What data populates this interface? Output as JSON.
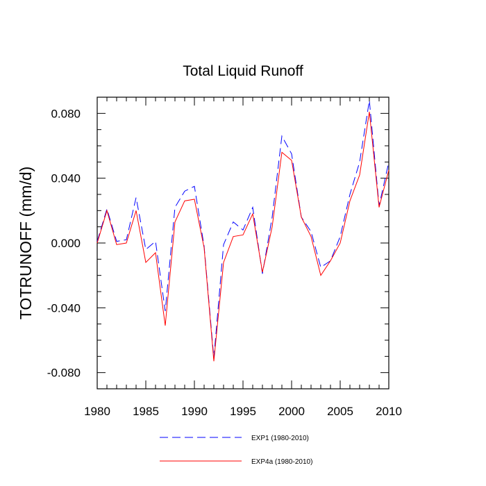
{
  "chart_data": {
    "type": "line",
    "title": "Total Liquid Runoff",
    "xlabel": "",
    "ylabel": "TOTRUNOFF  (mm/d)",
    "xlim": [
      1980,
      2010
    ],
    "ylim": [
      -0.09,
      0.09
    ],
    "x_ticks": [
      1980,
      1985,
      1990,
      1995,
      2000,
      2005,
      2010
    ],
    "y_ticks": [
      -0.08,
      -0.04,
      0.0,
      0.04,
      0.08
    ],
    "x_tick_labels": [
      "1980",
      "1985",
      "1990",
      "1995",
      "2000",
      "2005",
      "2010"
    ],
    "y_tick_labels": [
      "-0.080",
      "-0.040",
      "0.000",
      "0.040",
      "0.080"
    ],
    "grid": false,
    "legend_position": "bottom",
    "x": [
      1980,
      1981,
      1982,
      1983,
      1984,
      1985,
      1986,
      1987,
      1988,
      1989,
      1990,
      1991,
      1992,
      1993,
      1994,
      1995,
      1996,
      1997,
      1998,
      1999,
      2000,
      2001,
      2002,
      2003,
      2004,
      2005,
      2006,
      2007,
      2008,
      2009,
      2010
    ],
    "series": [
      {
        "name": "EXP1 (1980-2010)",
        "color": "#0000ff",
        "dash": "dashed",
        "values": [
          0.001,
          0.021,
          0.001,
          0.002,
          0.028,
          -0.004,
          0.001,
          -0.042,
          0.022,
          0.032,
          0.035,
          -0.002,
          -0.071,
          -0.001,
          0.013,
          0.008,
          0.022,
          -0.019,
          0.016,
          0.066,
          0.055,
          0.016,
          0.007,
          -0.015,
          -0.011,
          0.004,
          0.03,
          0.05,
          0.088,
          0.023,
          0.05
        ]
      },
      {
        "name": "EXP4a (1980-2010)",
        "color": "#ff0000",
        "dash": "solid",
        "values": [
          0.0,
          0.02,
          -0.001,
          0.0,
          0.02,
          -0.012,
          -0.006,
          -0.051,
          0.013,
          0.026,
          0.027,
          -0.003,
          -0.073,
          -0.012,
          0.004,
          0.005,
          0.018,
          -0.018,
          0.01,
          0.056,
          0.051,
          0.016,
          0.004,
          -0.02,
          -0.011,
          0.0,
          0.026,
          0.042,
          0.081,
          0.022,
          0.045
        ]
      }
    ]
  }
}
